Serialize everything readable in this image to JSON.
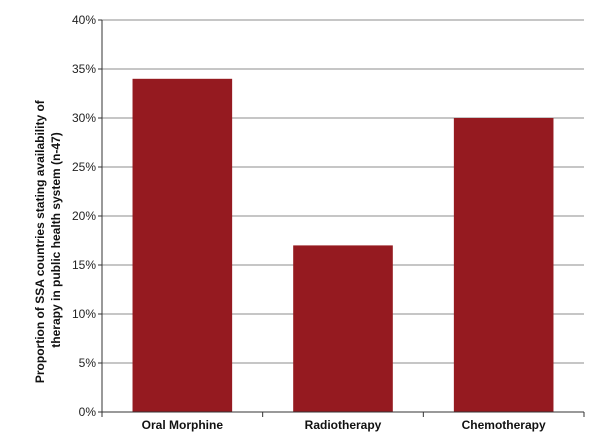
{
  "chart_data": {
    "type": "bar",
    "title": "",
    "xlabel": "",
    "ylabel_lines": [
      "Proportion of SSA countries stating availability of",
      "therapy in public health system (n-47)"
    ],
    "categories": [
      "Oral Morphine",
      "Radiotherapy",
      "Chemotherapy"
    ],
    "values": [
      34,
      17,
      30
    ],
    "ylim": [
      0,
      40
    ],
    "yticks": [
      0,
      5,
      10,
      15,
      20,
      25,
      30,
      35,
      40
    ],
    "ytick_suffix": "%",
    "grid": true,
    "bar_color": "#951a20",
    "grid_color": "#8c8c8c",
    "axis_color": "#333333"
  }
}
